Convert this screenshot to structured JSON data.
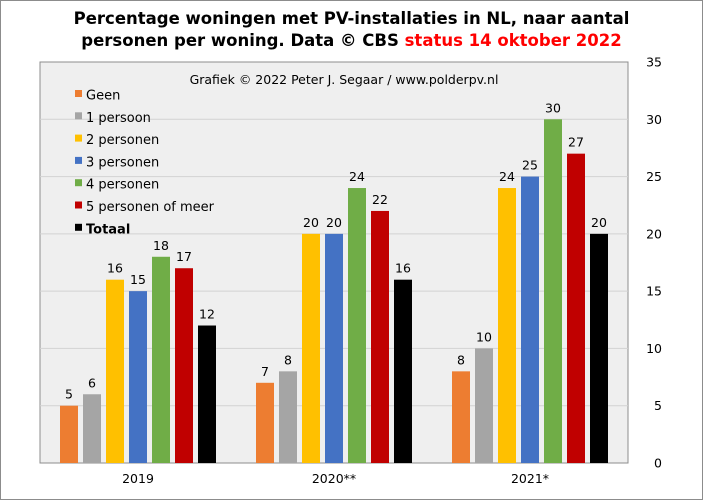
{
  "title": {
    "line1": "Percentage woningen met PV-installaties in NL, naar aantal",
    "line2_prefix": "personen per woning. Data © CBS",
    "line2_status": "status 14 oktober 2022"
  },
  "credit": "Grafiek © 2022 Peter J. Segaar / www.polderpv.nl",
  "colors": {
    "plot_background": "#efefef",
    "gridline": "#d2d2d2",
    "status_text": "#ff0000"
  },
  "chart_data": {
    "type": "bar",
    "categories": [
      "2019",
      "2020**",
      "2021*"
    ],
    "series": [
      {
        "name": "Geen",
        "color": "#ed7d31",
        "values": [
          5,
          7,
          8
        ]
      },
      {
        "name": "1 persoon",
        "color": "#a5a5a5",
        "values": [
          6,
          8,
          10
        ]
      },
      {
        "name": "2 personen",
        "color": "#ffc000",
        "values": [
          16,
          20,
          24
        ]
      },
      {
        "name": "3 personen",
        "color": "#4472c4",
        "values": [
          15,
          20,
          25
        ]
      },
      {
        "name": "4 personen",
        "color": "#70ad47",
        "values": [
          18,
          24,
          30
        ]
      },
      {
        "name": "5 personen of meer",
        "color": "#c00000",
        "values": [
          17,
          22,
          27
        ]
      },
      {
        "name": "Totaal",
        "color": "#000000",
        "values": [
          12,
          16,
          20
        ],
        "bold_legend": true
      }
    ],
    "y_axis": {
      "position": "right",
      "min": 0,
      "max": 35,
      "ticks": [
        0,
        5,
        10,
        15,
        20,
        25,
        30,
        35
      ]
    },
    "grid": true,
    "data_labels": true,
    "legend_placement": "top-left inside plot"
  }
}
